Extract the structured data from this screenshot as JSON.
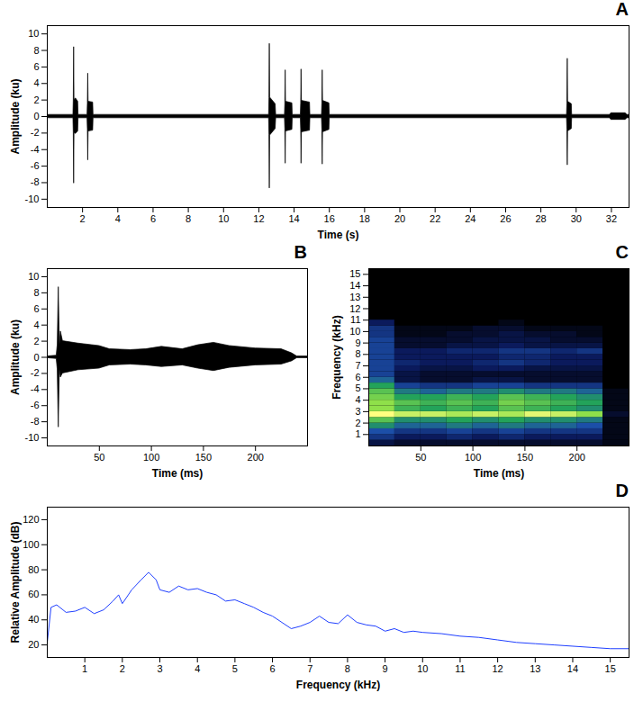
{
  "chart_data": [
    {
      "type": "area",
      "title": "A",
      "x_label": "Time (s)",
      "y_label": "Amplitude (ku)",
      "color": "#000000",
      "xlim": [
        0,
        33
      ],
      "xticks": [
        2,
        4,
        6,
        8,
        10,
        12,
        14,
        16,
        18,
        20,
        22,
        24,
        26,
        28,
        30,
        32
      ],
      "ylim": [
        -11,
        11
      ],
      "yticks": [
        -10,
        -8,
        -6,
        -4,
        -2,
        0,
        2,
        4,
        6,
        8,
        10
      ],
      "x": [
        0,
        1.48,
        1.5,
        1.52,
        1.54,
        1.62,
        1.75,
        1.77,
        2.28,
        2.3,
        2.32,
        2.34,
        2.6,
        2.62,
        12.58,
        12.6,
        12.62,
        12.64,
        12.95,
        12.98,
        13.48,
        13.5,
        13.52,
        13.54,
        13.9,
        13.92,
        14.38,
        14.4,
        14.42,
        14.44,
        14.9,
        14.92,
        15.58,
        15.6,
        15.62,
        15.64,
        16.0,
        16.02,
        29.48,
        29.5,
        29.52,
        29.54,
        29.75,
        29.77,
        31.9,
        32.0,
        32.8,
        32.9,
        33.0
      ],
      "upper": [
        0.2,
        0.2,
        2,
        8.4,
        2,
        2.2,
        1.8,
        0.2,
        0.2,
        1.6,
        5.2,
        1.8,
        1.7,
        0.2,
        0.2,
        2.2,
        8.8,
        2.3,
        1.5,
        0.2,
        0.2,
        1.5,
        5.6,
        1.8,
        1.6,
        0.2,
        0.2,
        1.6,
        5.7,
        1.9,
        1.7,
        0.2,
        0.2,
        1.6,
        5.6,
        1.9,
        1.6,
        0.2,
        0.2,
        1.6,
        7.0,
        1.8,
        1.5,
        0.2,
        0.2,
        0.4,
        0.4,
        0.2,
        0.2
      ],
      "lower": [
        -0.2,
        -0.2,
        -2,
        -8.1,
        -2,
        -2.1,
        -1.8,
        -0.2,
        -0.2,
        -1.6,
        -5.3,
        -1.8,
        -1.7,
        -0.2,
        -0.2,
        -2.2,
        -8.7,
        -2.3,
        -1.5,
        -0.2,
        -0.2,
        -1.5,
        -5.7,
        -1.8,
        -1.6,
        -0.2,
        -0.2,
        -1.6,
        -5.7,
        -1.9,
        -1.7,
        -0.2,
        -0.2,
        -1.6,
        -5.8,
        -1.9,
        -1.6,
        -0.2,
        -0.2,
        -1.6,
        -5.9,
        -1.8,
        -1.5,
        -0.2,
        -0.2,
        -0.4,
        -0.4,
        -0.2,
        -0.2
      ]
    },
    {
      "type": "area",
      "title": "B",
      "x_label": "Time (ms)",
      "y_label": "Amplitude (ku)",
      "color": "#000000",
      "xlim": [
        0,
        250
      ],
      "xticks": [
        50,
        100,
        150,
        200
      ],
      "ylim": [
        -11,
        11
      ],
      "yticks": [
        -10,
        -8,
        -6,
        -4,
        -2,
        0,
        2,
        4,
        6,
        8,
        10
      ],
      "x": [
        0,
        9,
        10,
        11,
        12,
        13,
        15,
        30,
        50,
        60,
        80,
        95,
        110,
        130,
        145,
        160,
        175,
        200,
        225,
        235,
        240,
        250
      ],
      "upper": [
        0.1,
        0.2,
        1.5,
        8.7,
        1.5,
        3.2,
        2.0,
        1.7,
        1.4,
        1.0,
        0.9,
        1.0,
        1.3,
        1.0,
        1.5,
        1.8,
        1.4,
        1.1,
        1.0,
        0.5,
        0.1,
        0.1
      ],
      "lower": [
        -0.1,
        -0.2,
        -1.5,
        -8.7,
        -1.5,
        -2.5,
        -2.0,
        -1.6,
        -1.4,
        -1.0,
        -0.9,
        -1.0,
        -1.2,
        -1.0,
        -1.4,
        -1.7,
        -1.3,
        -1.0,
        -0.9,
        -0.5,
        -0.1,
        -0.1
      ]
    },
    {
      "type": "heatmap",
      "title": "C",
      "x_label": "Time (ms)",
      "y_label": "Frequency (kHz)",
      "xlim": [
        0,
        250
      ],
      "xticks": [
        50,
        100,
        150,
        200
      ],
      "ylim": [
        0,
        15.5
      ],
      "yticks": [
        1,
        2,
        3,
        4,
        5,
        6,
        7,
        8,
        9,
        10,
        11,
        12,
        13,
        14,
        15
      ],
      "zlim": [
        0,
        1
      ],
      "x_edges": [
        0,
        25,
        50,
        75,
        100,
        125,
        150,
        175,
        200,
        225,
        250
      ],
      "y_edges": [
        0,
        0.5,
        1,
        1.5,
        2,
        2.5,
        3,
        3.5,
        4,
        4.5,
        5,
        5.5,
        6,
        6.5,
        7,
        7.5,
        8,
        8.5,
        9,
        9.5,
        10,
        10.5,
        11
      ],
      "cells": [
        [
          0.15,
          0.1,
          0.1,
          0.1,
          0.1,
          0.1,
          0.1,
          0.1,
          0.1,
          0.05
        ],
        [
          0.3,
          0.2,
          0.2,
          0.25,
          0.2,
          0.25,
          0.2,
          0.2,
          0.2,
          0.05
        ],
        [
          0.4,
          0.3,
          0.3,
          0.35,
          0.3,
          0.35,
          0.3,
          0.3,
          0.3,
          0.05
        ],
        [
          0.55,
          0.45,
          0.45,
          0.5,
          0.45,
          0.5,
          0.45,
          0.45,
          0.4,
          0.05
        ],
        [
          0.7,
          0.55,
          0.55,
          0.6,
          0.55,
          0.6,
          0.55,
          0.55,
          0.5,
          0.05
        ],
        [
          1,
          0.9,
          0.9,
          0.85,
          0.9,
          0.85,
          0.95,
          0.9,
          0.8,
          0.1
        ],
        [
          0.8,
          0.65,
          0.6,
          0.65,
          0.6,
          0.7,
          0.65,
          0.6,
          0.55,
          0.05
        ],
        [
          0.8,
          0.7,
          0.65,
          0.7,
          0.65,
          0.75,
          0.7,
          0.65,
          0.6,
          0.05
        ],
        [
          0.75,
          0.6,
          0.6,
          0.65,
          0.6,
          0.7,
          0.65,
          0.6,
          0.55,
          0.05
        ],
        [
          0.7,
          0.5,
          0.45,
          0.5,
          0.5,
          0.55,
          0.5,
          0.5,
          0.45,
          0.05
        ],
        [
          0.6,
          0.35,
          0.3,
          0.3,
          0.35,
          0.35,
          0.3,
          0.3,
          0.3,
          0
        ],
        [
          0.45,
          0.15,
          0.1,
          0.1,
          0.15,
          0.15,
          0.1,
          0.1,
          0.1,
          0
        ],
        [
          0.35,
          0.15,
          0.1,
          0.1,
          0.1,
          0.1,
          0.1,
          0.1,
          0.1,
          0
        ],
        [
          0.35,
          0.2,
          0.15,
          0.15,
          0.2,
          0.2,
          0.15,
          0.15,
          0.15,
          0
        ],
        [
          0.35,
          0.25,
          0.2,
          0.2,
          0.25,
          0.3,
          0.25,
          0.2,
          0.2,
          0
        ],
        [
          0.35,
          0.2,
          0.2,
          0.2,
          0.2,
          0.25,
          0.25,
          0.2,
          0.2,
          0
        ],
        [
          0.35,
          0.2,
          0.2,
          0.25,
          0.25,
          0.3,
          0.3,
          0.25,
          0.3,
          0
        ],
        [
          0.35,
          0.1,
          0.1,
          0.15,
          0.15,
          0.2,
          0.15,
          0.15,
          0.15,
          0
        ],
        [
          0.35,
          0.1,
          0.1,
          0.1,
          0.15,
          0.15,
          0.15,
          0.1,
          0.1,
          0
        ],
        [
          0.3,
          0.05,
          0.05,
          0.1,
          0.1,
          0.15,
          0.1,
          0.1,
          0.05,
          0
        ],
        [
          0.3,
          0.05,
          0.05,
          0.05,
          0.1,
          0.1,
          0.05,
          0.05,
          0.05,
          0
        ],
        [
          0.2,
          0,
          0,
          0,
          0,
          0.05,
          0,
          0,
          0,
          0
        ]
      ]
    },
    {
      "type": "line",
      "title": "D",
      "x_label": "Frequency (kHz)",
      "y_label": "Relative Amplitude (dB)",
      "color": "#1f3fff",
      "xlim": [
        0,
        15.5
      ],
      "xticks": [
        1,
        2,
        3,
        4,
        5,
        6,
        7,
        8,
        9,
        10,
        11,
        12,
        13,
        14,
        15
      ],
      "ylim": [
        10,
        130
      ],
      "yticks": [
        20,
        40,
        60,
        80,
        100,
        120
      ],
      "x": [
        0,
        0.1,
        0.25,
        0.5,
        0.75,
        1,
        1.25,
        1.5,
        1.75,
        1.9,
        2,
        2.25,
        2.5,
        2.7,
        2.9,
        3,
        3.25,
        3.5,
        3.75,
        4,
        4.25,
        4.5,
        4.75,
        5,
        5.25,
        5.5,
        5.75,
        6,
        6.25,
        6.5,
        6.75,
        7,
        7.25,
        7.5,
        7.75,
        8,
        8.25,
        8.5,
        8.75,
        9,
        9.25,
        9.5,
        9.75,
        10,
        10.5,
        11,
        11.5,
        12,
        12.5,
        13,
        13.5,
        14,
        14.5,
        15,
        15.5
      ],
      "values": [
        22,
        50,
        52,
        46,
        47,
        50,
        45,
        48,
        55,
        60,
        53,
        64,
        72,
        78,
        72,
        64,
        62,
        67,
        64,
        65,
        62,
        60,
        55,
        56,
        53,
        50,
        46,
        43,
        38,
        33,
        35,
        38,
        43,
        38,
        37,
        44,
        38,
        36,
        35,
        31,
        33,
        30,
        31,
        30,
        29,
        27,
        26,
        24,
        22,
        21,
        20,
        19,
        18,
        17,
        17
      ]
    }
  ]
}
